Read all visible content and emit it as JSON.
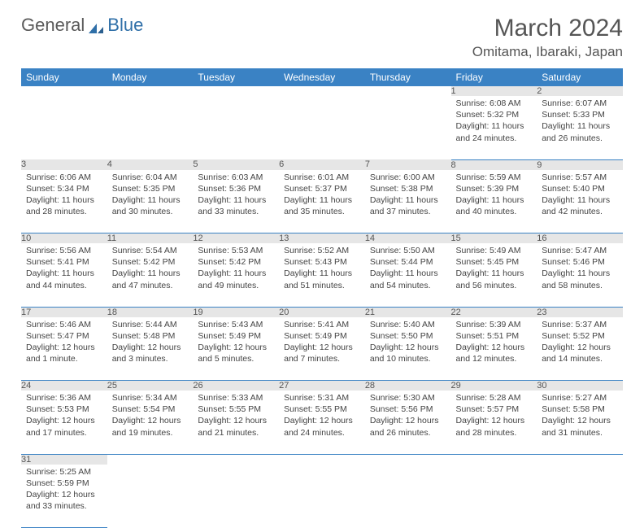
{
  "logo": {
    "text1": "General",
    "text2": "Blue"
  },
  "title": "March 2024",
  "location": "Omitama, Ibaraki, Japan",
  "colors": {
    "header_bg": "#3a82c4",
    "header_text": "#ffffff",
    "daynum_bg": "#e6e6e6",
    "border": "#3a82c4",
    "logo_gray": "#5a5a5a",
    "logo_blue": "#2f6fa8",
    "text": "#444444"
  },
  "weekdays": [
    "Sunday",
    "Monday",
    "Tuesday",
    "Wednesday",
    "Thursday",
    "Friday",
    "Saturday"
  ],
  "weeks": [
    [
      null,
      null,
      null,
      null,
      null,
      {
        "n": "1",
        "sr": "Sunrise: 6:08 AM",
        "ss": "Sunset: 5:32 PM",
        "dl": "Daylight: 11 hours and 24 minutes."
      },
      {
        "n": "2",
        "sr": "Sunrise: 6:07 AM",
        "ss": "Sunset: 5:33 PM",
        "dl": "Daylight: 11 hours and 26 minutes."
      }
    ],
    [
      {
        "n": "3",
        "sr": "Sunrise: 6:06 AM",
        "ss": "Sunset: 5:34 PM",
        "dl": "Daylight: 11 hours and 28 minutes."
      },
      {
        "n": "4",
        "sr": "Sunrise: 6:04 AM",
        "ss": "Sunset: 5:35 PM",
        "dl": "Daylight: 11 hours and 30 minutes."
      },
      {
        "n": "5",
        "sr": "Sunrise: 6:03 AM",
        "ss": "Sunset: 5:36 PM",
        "dl": "Daylight: 11 hours and 33 minutes."
      },
      {
        "n": "6",
        "sr": "Sunrise: 6:01 AM",
        "ss": "Sunset: 5:37 PM",
        "dl": "Daylight: 11 hours and 35 minutes."
      },
      {
        "n": "7",
        "sr": "Sunrise: 6:00 AM",
        "ss": "Sunset: 5:38 PM",
        "dl": "Daylight: 11 hours and 37 minutes."
      },
      {
        "n": "8",
        "sr": "Sunrise: 5:59 AM",
        "ss": "Sunset: 5:39 PM",
        "dl": "Daylight: 11 hours and 40 minutes."
      },
      {
        "n": "9",
        "sr": "Sunrise: 5:57 AM",
        "ss": "Sunset: 5:40 PM",
        "dl": "Daylight: 11 hours and 42 minutes."
      }
    ],
    [
      {
        "n": "10",
        "sr": "Sunrise: 5:56 AM",
        "ss": "Sunset: 5:41 PM",
        "dl": "Daylight: 11 hours and 44 minutes."
      },
      {
        "n": "11",
        "sr": "Sunrise: 5:54 AM",
        "ss": "Sunset: 5:42 PM",
        "dl": "Daylight: 11 hours and 47 minutes."
      },
      {
        "n": "12",
        "sr": "Sunrise: 5:53 AM",
        "ss": "Sunset: 5:42 PM",
        "dl": "Daylight: 11 hours and 49 minutes."
      },
      {
        "n": "13",
        "sr": "Sunrise: 5:52 AM",
        "ss": "Sunset: 5:43 PM",
        "dl": "Daylight: 11 hours and 51 minutes."
      },
      {
        "n": "14",
        "sr": "Sunrise: 5:50 AM",
        "ss": "Sunset: 5:44 PM",
        "dl": "Daylight: 11 hours and 54 minutes."
      },
      {
        "n": "15",
        "sr": "Sunrise: 5:49 AM",
        "ss": "Sunset: 5:45 PM",
        "dl": "Daylight: 11 hours and 56 minutes."
      },
      {
        "n": "16",
        "sr": "Sunrise: 5:47 AM",
        "ss": "Sunset: 5:46 PM",
        "dl": "Daylight: 11 hours and 58 minutes."
      }
    ],
    [
      {
        "n": "17",
        "sr": "Sunrise: 5:46 AM",
        "ss": "Sunset: 5:47 PM",
        "dl": "Daylight: 12 hours and 1 minute."
      },
      {
        "n": "18",
        "sr": "Sunrise: 5:44 AM",
        "ss": "Sunset: 5:48 PM",
        "dl": "Daylight: 12 hours and 3 minutes."
      },
      {
        "n": "19",
        "sr": "Sunrise: 5:43 AM",
        "ss": "Sunset: 5:49 PM",
        "dl": "Daylight: 12 hours and 5 minutes."
      },
      {
        "n": "20",
        "sr": "Sunrise: 5:41 AM",
        "ss": "Sunset: 5:49 PM",
        "dl": "Daylight: 12 hours and 7 minutes."
      },
      {
        "n": "21",
        "sr": "Sunrise: 5:40 AM",
        "ss": "Sunset: 5:50 PM",
        "dl": "Daylight: 12 hours and 10 minutes."
      },
      {
        "n": "22",
        "sr": "Sunrise: 5:39 AM",
        "ss": "Sunset: 5:51 PM",
        "dl": "Daylight: 12 hours and 12 minutes."
      },
      {
        "n": "23",
        "sr": "Sunrise: 5:37 AM",
        "ss": "Sunset: 5:52 PM",
        "dl": "Daylight: 12 hours and 14 minutes."
      }
    ],
    [
      {
        "n": "24",
        "sr": "Sunrise: 5:36 AM",
        "ss": "Sunset: 5:53 PM",
        "dl": "Daylight: 12 hours and 17 minutes."
      },
      {
        "n": "25",
        "sr": "Sunrise: 5:34 AM",
        "ss": "Sunset: 5:54 PM",
        "dl": "Daylight: 12 hours and 19 minutes."
      },
      {
        "n": "26",
        "sr": "Sunrise: 5:33 AM",
        "ss": "Sunset: 5:55 PM",
        "dl": "Daylight: 12 hours and 21 minutes."
      },
      {
        "n": "27",
        "sr": "Sunrise: 5:31 AM",
        "ss": "Sunset: 5:55 PM",
        "dl": "Daylight: 12 hours and 24 minutes."
      },
      {
        "n": "28",
        "sr": "Sunrise: 5:30 AM",
        "ss": "Sunset: 5:56 PM",
        "dl": "Daylight: 12 hours and 26 minutes."
      },
      {
        "n": "29",
        "sr": "Sunrise: 5:28 AM",
        "ss": "Sunset: 5:57 PM",
        "dl": "Daylight: 12 hours and 28 minutes."
      },
      {
        "n": "30",
        "sr": "Sunrise: 5:27 AM",
        "ss": "Sunset: 5:58 PM",
        "dl": "Daylight: 12 hours and 31 minutes."
      }
    ],
    [
      {
        "n": "31",
        "sr": "Sunrise: 5:25 AM",
        "ss": "Sunset: 5:59 PM",
        "dl": "Daylight: 12 hours and 33 minutes."
      },
      null,
      null,
      null,
      null,
      null,
      null
    ]
  ]
}
